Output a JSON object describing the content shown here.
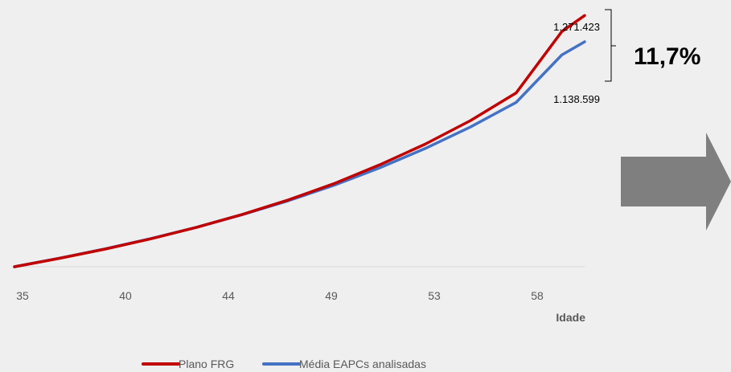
{
  "chart_data": {
    "type": "line",
    "title": "",
    "xlabel": "Idade",
    "ylabel": "",
    "x_ticks": [
      "35",
      "40",
      "44",
      "49",
      "53",
      "58"
    ],
    "x_range": [
      35,
      60
    ],
    "ylim": [
      0,
      1350000
    ],
    "grid": false,
    "legend_position": "bottom",
    "series": [
      {
        "name": "Plano FRG",
        "color": "#C00000",
        "x": [
          35,
          37,
          39,
          41,
          43,
          45,
          47,
          49,
          51,
          53,
          55,
          57,
          59,
          60
        ],
        "y": [
          0,
          43000,
          90000,
          142000,
          200000,
          265000,
          338000,
          420000,
          515000,
          620000,
          740000,
          880000,
          1190000,
          1271423
        ]
      },
      {
        "name": "Média EAPCs analisadas",
        "color": "#4472C4",
        "x": [
          35,
          37,
          39,
          41,
          43,
          45,
          47,
          49,
          51,
          53,
          55,
          57,
          59,
          60
        ],
        "y": [
          0,
          44000,
          91000,
          143000,
          200000,
          264000,
          334000,
          412000,
          500000,
          598000,
          708000,
          832000,
          1072000,
          1138599
        ]
      }
    ],
    "annotations": {
      "top_value": "1.271.423",
      "bottom_value": "1.138.599",
      "difference": "11,7%"
    }
  },
  "colors": {
    "arrow": "#7f7f7f",
    "axis": "#d9d9d9",
    "background": "#efefef"
  },
  "icons": {
    "arrow": "right-arrow-icon"
  }
}
